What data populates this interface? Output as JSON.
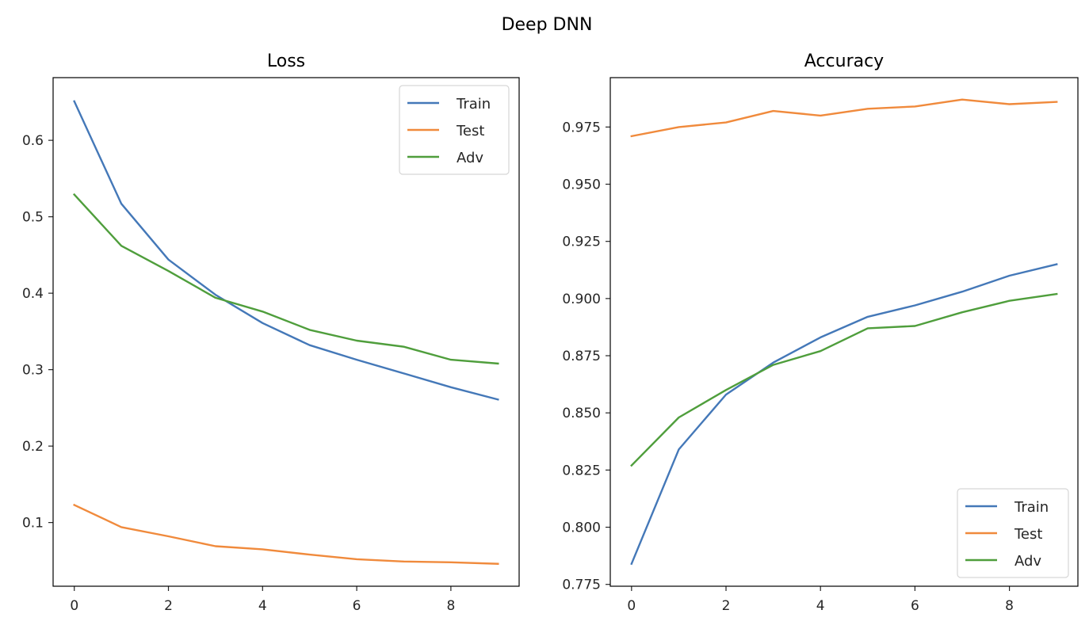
{
  "title": "Deep DNN",
  "colors": {
    "Train": "#4478b8",
    "Test": "#f08a3c",
    "Adv": "#4f9e3c"
  },
  "chart_data": [
    {
      "type": "line",
      "title": "Loss",
      "xlabel": "",
      "ylabel": "",
      "x": [
        0,
        1,
        2,
        3,
        4,
        5,
        6,
        7,
        8,
        9
      ],
      "xticks": [
        "0",
        "2",
        "4",
        "6",
        "8"
      ],
      "xtick_values": [
        0,
        2,
        4,
        6,
        8
      ],
      "yticks": [
        "0.1",
        "0.2",
        "0.3",
        "0.4",
        "0.5",
        "0.6"
      ],
      "ytick_values": [
        0.1,
        0.2,
        0.3,
        0.4,
        0.5,
        0.6
      ],
      "xlim": [
        -0.45,
        9.45
      ],
      "ylim": [
        0.0167,
        0.682
      ],
      "legend": "top-right",
      "grid": false,
      "series": [
        {
          "name": "Train",
          "values": [
            0.651,
            0.517,
            0.444,
            0.398,
            0.361,
            0.332,
            0.313,
            0.295,
            0.277,
            0.261
          ]
        },
        {
          "name": "Test",
          "values": [
            0.123,
            0.094,
            0.082,
            0.069,
            0.065,
            0.058,
            0.052,
            0.049,
            0.048,
            0.046
          ]
        },
        {
          "name": "Adv",
          "values": [
            0.529,
            0.462,
            0.429,
            0.394,
            0.376,
            0.352,
            0.338,
            0.33,
            0.313,
            0.308
          ]
        }
      ]
    },
    {
      "type": "line",
      "title": "Accuracy",
      "xlabel": "",
      "ylabel": "",
      "x": [
        0,
        1,
        2,
        3,
        4,
        5,
        6,
        7,
        8,
        9
      ],
      "xticks": [
        "0",
        "2",
        "4",
        "6",
        "8"
      ],
      "xtick_values": [
        0,
        2,
        4,
        6,
        8
      ],
      "yticks": [
        "0.775",
        "0.800",
        "0.825",
        "0.850",
        "0.875",
        "0.900",
        "0.925",
        "0.950",
        "0.975"
      ],
      "ytick_values": [
        0.775,
        0.8,
        0.825,
        0.85,
        0.875,
        0.9,
        0.925,
        0.95,
        0.975
      ],
      "xlim": [
        -0.45,
        9.45
      ],
      "ylim": [
        0.7742,
        0.9966
      ],
      "legend": "bottom-right",
      "grid": false,
      "series": [
        {
          "name": "Train",
          "values": [
            0.784,
            0.834,
            0.858,
            0.872,
            0.883,
            0.892,
            0.897,
            0.903,
            0.91,
            0.915
          ]
        },
        {
          "name": "Test",
          "values": [
            0.971,
            0.975,
            0.977,
            0.982,
            0.98,
            0.983,
            0.984,
            0.987,
            0.985,
            0.986
          ]
        },
        {
          "name": "Adv",
          "values": [
            0.827,
            0.848,
            0.86,
            0.871,
            0.877,
            0.887,
            0.888,
            0.894,
            0.899,
            0.902
          ]
        }
      ]
    }
  ]
}
